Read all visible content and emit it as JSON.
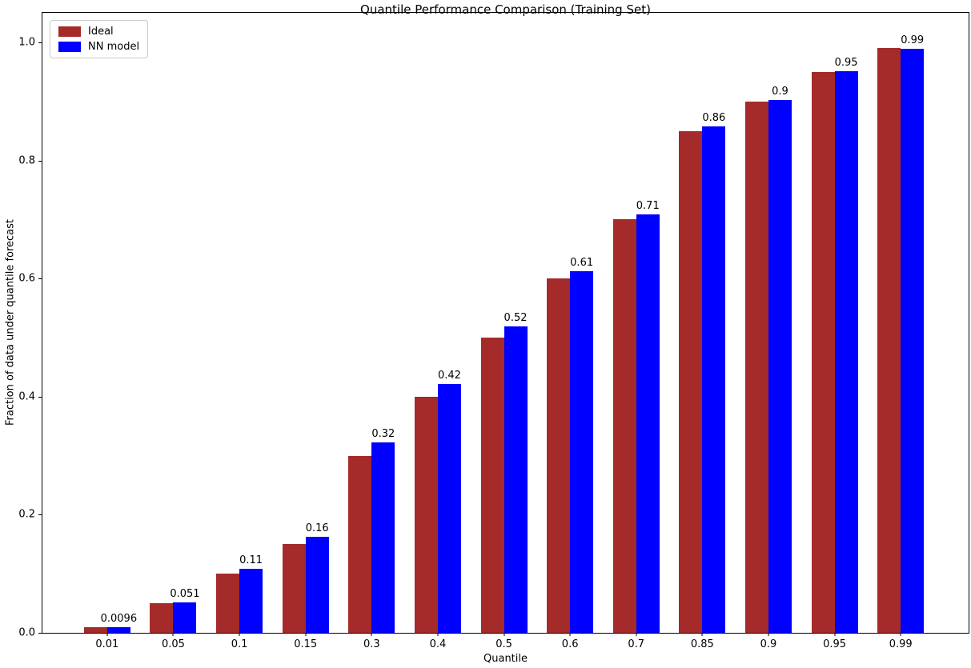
{
  "chart_data": {
    "type": "bar",
    "title": "Quantile Performance Comparison (Training Set)",
    "xlabel": "Quantile",
    "ylabel": "Fraction of data under quantile forecast",
    "categories": [
      "0.01",
      "0.05",
      "0.1",
      "0.15",
      "0.3",
      "0.4",
      "0.5",
      "0.6",
      "0.7",
      "0.85",
      "0.9",
      "0.95",
      "0.99"
    ],
    "series": [
      {
        "name": "Ideal",
        "color": "#a52a2a",
        "values": [
          0.01,
          0.05,
          0.1,
          0.15,
          0.3,
          0.4,
          0.5,
          0.6,
          0.7,
          0.85,
          0.9,
          0.95,
          0.99
        ]
      },
      {
        "name": "NN model",
        "color": "#0000ff",
        "values": [
          0.0096,
          0.051,
          0.108,
          0.163,
          0.322,
          0.422,
          0.519,
          0.612,
          0.709,
          0.858,
          0.903,
          0.951,
          0.989
        ]
      }
    ],
    "bar_labels": {
      "labeled_series": "NN model",
      "labels": [
        "0.0096",
        "0.051",
        "0.11",
        "0.16",
        "0.32",
        "0.42",
        "0.52",
        "0.61",
        "0.71",
        "0.86",
        "0.9",
        "0.95",
        "0.99"
      ]
    },
    "yticks": [
      "0.0",
      "0.2",
      "0.4",
      "0.6",
      "0.8",
      "1.0"
    ],
    "ylim": [
      0,
      1.05
    ],
    "grid": false,
    "legend_position": "upper-left",
    "background": "#ffffff"
  }
}
